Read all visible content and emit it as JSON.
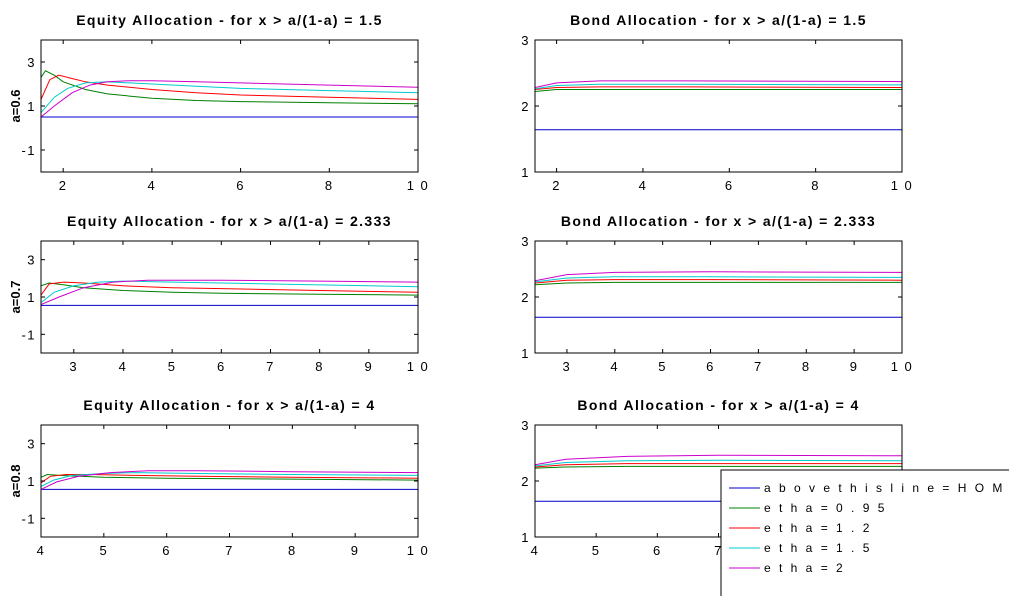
{
  "chart_data": [
    {
      "type": "line",
      "title": "Equity Allocation - for x > a/(1-a) = 1.5",
      "ylabel": "a=0.6",
      "xlim": [
        1.5,
        10
      ],
      "ylim": [
        -2,
        4
      ],
      "xticks": [
        2,
        4,
        6,
        8,
        10
      ],
      "xtick_labels": [
        "2",
        "4",
        "6",
        "8",
        "1 0"
      ],
      "yticks": [
        -1,
        1,
        3
      ],
      "ytick_labels": [
        "-1",
        "1",
        "3"
      ],
      "series": [
        {
          "name": "above this line=HOME BIAS",
          "color": "#0000cc",
          "x": [
            1.5,
            10
          ],
          "y": [
            0.5,
            0.5
          ]
        },
        {
          "name": "etha=0.95",
          "color": "#008000",
          "x": [
            1.5,
            1.6,
            1.8,
            2,
            2.5,
            3,
            4,
            5,
            6,
            8,
            10
          ],
          "y": [
            2.3,
            2.6,
            2.4,
            2.1,
            1.75,
            1.55,
            1.35,
            1.25,
            1.2,
            1.15,
            1.1
          ]
        },
        {
          "name": "etha=1.2",
          "color": "#ff0000",
          "x": [
            1.5,
            1.7,
            1.9,
            2.2,
            2.5,
            3,
            4,
            5,
            6,
            8,
            10
          ],
          "y": [
            1.3,
            2.2,
            2.4,
            2.25,
            2.1,
            1.95,
            1.75,
            1.6,
            1.5,
            1.4,
            1.3
          ]
        },
        {
          "name": "etha=1.5",
          "color": "#00cccc",
          "x": [
            1.5,
            1.8,
            2.1,
            2.5,
            3,
            3.5,
            4,
            5,
            6,
            8,
            10
          ],
          "y": [
            0.7,
            1.4,
            1.8,
            2.05,
            2.1,
            2.05,
            2.0,
            1.9,
            1.8,
            1.7,
            1.6
          ]
        },
        {
          "name": "etha=2",
          "color": "#cc00cc",
          "x": [
            1.5,
            1.8,
            2.2,
            2.6,
            3,
            3.5,
            4,
            5,
            6,
            8,
            10
          ],
          "y": [
            0.5,
            1.0,
            1.6,
            1.95,
            2.1,
            2.15,
            2.15,
            2.1,
            2.05,
            1.95,
            1.85
          ]
        }
      ]
    },
    {
      "type": "line",
      "title": "Bond Allocation - for x > a/(1-a) = 1.5",
      "ylabel": "",
      "xlim": [
        1.5,
        10
      ],
      "ylim": [
        1,
        3
      ],
      "xticks": [
        2,
        4,
        6,
        8,
        10
      ],
      "xtick_labels": [
        "2",
        "4",
        "6",
        "8",
        "1 0"
      ],
      "yticks": [
        1,
        2,
        3
      ],
      "ytick_labels": [
        "1",
        "2",
        "3"
      ],
      "series": [
        {
          "name": "above this line=HOME BIAS",
          "color": "#0000cc",
          "x": [
            1.5,
            10
          ],
          "y": [
            1.64,
            1.64
          ]
        },
        {
          "name": "etha=0.95",
          "color": "#008000",
          "x": [
            1.5,
            2,
            3,
            5,
            10
          ],
          "y": [
            2.22,
            2.25,
            2.25,
            2.25,
            2.25
          ]
        },
        {
          "name": "etha=1.2",
          "color": "#ff0000",
          "x": [
            1.5,
            2,
            3,
            5,
            10
          ],
          "y": [
            2.25,
            2.28,
            2.29,
            2.29,
            2.28
          ]
        },
        {
          "name": "etha=1.5",
          "color": "#00cccc",
          "x": [
            1.5,
            2,
            3,
            5,
            10
          ],
          "y": [
            2.26,
            2.31,
            2.33,
            2.33,
            2.32
          ]
        },
        {
          "name": "etha=2",
          "color": "#cc00cc",
          "x": [
            1.5,
            2,
            3,
            5,
            10
          ],
          "y": [
            2.28,
            2.35,
            2.38,
            2.38,
            2.37
          ]
        }
      ]
    },
    {
      "type": "line",
      "title": "Equity Allocation -  for x > a/(1-a) = 2.333",
      "ylabel": "a=0.7",
      "xlim": [
        2.333,
        10
      ],
      "ylim": [
        -2,
        4
      ],
      "xticks": [
        3,
        4,
        5,
        6,
        7,
        8,
        9,
        10
      ],
      "xtick_labels": [
        "3",
        "4",
        "5",
        "6",
        "7",
        "8",
        "9",
        "1 0"
      ],
      "yticks": [
        -1,
        1,
        3
      ],
      "ytick_labels": [
        "-1",
        "1",
        "3"
      ],
      "series": [
        {
          "name": "above this line=HOME BIAS",
          "color": "#0000cc",
          "x": [
            2.333,
            10
          ],
          "y": [
            0.55,
            0.55
          ]
        },
        {
          "name": "etha=0.95",
          "color": "#008000",
          "x": [
            2.333,
            2.5,
            2.8,
            3.2,
            4,
            5,
            6,
            8,
            10
          ],
          "y": [
            1.6,
            1.75,
            1.65,
            1.5,
            1.35,
            1.25,
            1.2,
            1.15,
            1.1
          ]
        },
        {
          "name": "etha=1.2",
          "color": "#ff0000",
          "x": [
            2.333,
            2.5,
            2.8,
            3.2,
            4,
            5,
            6,
            8,
            10
          ],
          "y": [
            1.1,
            1.7,
            1.8,
            1.75,
            1.6,
            1.5,
            1.45,
            1.35,
            1.25
          ]
        },
        {
          "name": "etha=1.5",
          "color": "#00cccc",
          "x": [
            2.333,
            2.6,
            3,
            3.5,
            4,
            5,
            6,
            8,
            10
          ],
          "y": [
            0.7,
            1.25,
            1.6,
            1.8,
            1.85,
            1.8,
            1.75,
            1.65,
            1.55
          ]
        },
        {
          "name": "etha=2",
          "color": "#cc00cc",
          "x": [
            2.333,
            2.7,
            3.2,
            3.8,
            4.5,
            5,
            6,
            8,
            10
          ],
          "y": [
            0.6,
            1.0,
            1.5,
            1.8,
            1.9,
            1.9,
            1.9,
            1.85,
            1.8
          ]
        }
      ]
    },
    {
      "type": "line",
      "title": "Bond Allocation  - for x > a/(1-a) = 2.333",
      "ylabel": "",
      "xlim": [
        2.333,
        10
      ],
      "ylim": [
        1,
        3
      ],
      "xticks": [
        3,
        4,
        5,
        6,
        7,
        8,
        9,
        10
      ],
      "xtick_labels": [
        "3",
        "4",
        "5",
        "6",
        "7",
        "8",
        "9",
        "1 0"
      ],
      "yticks": [
        1,
        2,
        3
      ],
      "ytick_labels": [
        "1",
        "2",
        "3"
      ],
      "series": [
        {
          "name": "above this line=HOME BIAS",
          "color": "#0000cc",
          "x": [
            2.333,
            10
          ],
          "y": [
            1.64,
            1.64
          ]
        },
        {
          "name": "etha=0.95",
          "color": "#008000",
          "x": [
            2.333,
            3,
            4,
            6,
            10
          ],
          "y": [
            2.22,
            2.25,
            2.26,
            2.26,
            2.26
          ]
        },
        {
          "name": "etha=1.2",
          "color": "#ff0000",
          "x": [
            2.333,
            3,
            4,
            6,
            10
          ],
          "y": [
            2.25,
            2.3,
            2.31,
            2.31,
            2.3
          ]
        },
        {
          "name": "etha=1.5",
          "color": "#00cccc",
          "x": [
            2.333,
            3,
            4,
            6,
            10
          ],
          "y": [
            2.27,
            2.34,
            2.36,
            2.36,
            2.35
          ]
        },
        {
          "name": "etha=2",
          "color": "#cc00cc",
          "x": [
            2.333,
            3,
            4,
            6,
            10
          ],
          "y": [
            2.29,
            2.4,
            2.44,
            2.45,
            2.44
          ]
        }
      ]
    },
    {
      "type": "line",
      "title": "Equity Allocation - for x > a/(1-a) = 4",
      "ylabel": "a=0.8",
      "xlim": [
        4,
        10
      ],
      "ylim": [
        -2,
        4
      ],
      "xticks": [
        4,
        5,
        6,
        7,
        8,
        9,
        10
      ],
      "xtick_labels": [
        "4",
        "5",
        "6",
        "7",
        "8",
        "9",
        "1 0"
      ],
      "yticks": [
        -1,
        1,
        3
      ],
      "ytick_labels": [
        "-1",
        "1",
        "3"
      ],
      "series": [
        {
          "name": "above this line=HOME BIAS",
          "color": "#0000cc",
          "x": [
            4,
            10
          ],
          "y": [
            0.55,
            0.55
          ]
        },
        {
          "name": "etha=0.95",
          "color": "#008000",
          "x": [
            4,
            4.1,
            4.3,
            4.6,
            5,
            6,
            8,
            10
          ],
          "y": [
            1.2,
            1.35,
            1.3,
            1.25,
            1.2,
            1.15,
            1.1,
            1.05
          ]
        },
        {
          "name": "etha=1.2",
          "color": "#ff0000",
          "x": [
            4,
            4.15,
            4.4,
            4.8,
            5.5,
            6.5,
            8,
            10
          ],
          "y": [
            0.9,
            1.25,
            1.35,
            1.35,
            1.3,
            1.25,
            1.2,
            1.15
          ]
        },
        {
          "name": "etha=1.5",
          "color": "#00cccc",
          "x": [
            4,
            4.2,
            4.5,
            5,
            5.5,
            6.5,
            8,
            10
          ],
          "y": [
            0.7,
            1.05,
            1.3,
            1.4,
            1.45,
            1.4,
            1.35,
            1.3
          ]
        },
        {
          "name": "etha=2",
          "color": "#cc00cc",
          "x": [
            4,
            4.25,
            4.6,
            5.1,
            5.7,
            6.5,
            8,
            10
          ],
          "y": [
            0.55,
            0.95,
            1.25,
            1.45,
            1.55,
            1.55,
            1.5,
            1.45
          ]
        }
      ]
    },
    {
      "type": "line",
      "title": "Bond Allocation - for x > a/(1-a) = 4",
      "ylabel": "",
      "xlim": [
        4,
        10
      ],
      "ylim": [
        1,
        3
      ],
      "xticks": [
        4,
        5,
        6,
        7
      ],
      "xtick_labels": [
        "4",
        "5",
        "6",
        "7"
      ],
      "yticks": [
        1,
        2,
        3
      ],
      "ytick_labels": [
        "1",
        "2",
        "3"
      ],
      "series": [
        {
          "name": "above this line=HOME BIAS",
          "color": "#0000cc",
          "x": [
            4,
            10
          ],
          "y": [
            1.64,
            1.64
          ]
        },
        {
          "name": "etha=0.95",
          "color": "#008000",
          "x": [
            4,
            4.5,
            5.5,
            7,
            10
          ],
          "y": [
            2.23,
            2.25,
            2.26,
            2.26,
            2.26
          ]
        },
        {
          "name": "etha=1.2",
          "color": "#ff0000",
          "x": [
            4,
            4.5,
            5.5,
            7,
            10
          ],
          "y": [
            2.25,
            2.29,
            2.31,
            2.31,
            2.31
          ]
        },
        {
          "name": "etha=1.5",
          "color": "#00cccc",
          "x": [
            4,
            4.5,
            5.5,
            7,
            10
          ],
          "y": [
            2.27,
            2.33,
            2.36,
            2.37,
            2.36
          ]
        },
        {
          "name": "etha=2",
          "color": "#cc00cc",
          "x": [
            4,
            4.5,
            5.5,
            7,
            10
          ],
          "y": [
            2.29,
            2.39,
            2.44,
            2.46,
            2.45
          ]
        }
      ]
    }
  ],
  "legend": {
    "placement": "bottom-right",
    "entries": [
      {
        "label": "a b o v e  t h i s  l i n e = H O M E  B I A S",
        "color": "#0000cc"
      },
      {
        "label": "e t h a = 0 . 9 5",
        "color": "#008000"
      },
      {
        "label": "e t h a = 1 . 2",
        "color": "#ff0000"
      },
      {
        "label": "e t h a = 1 . 5",
        "color": "#00cccc"
      },
      {
        "label": "e t h a = 2",
        "color": "#cc00cc"
      }
    ]
  }
}
